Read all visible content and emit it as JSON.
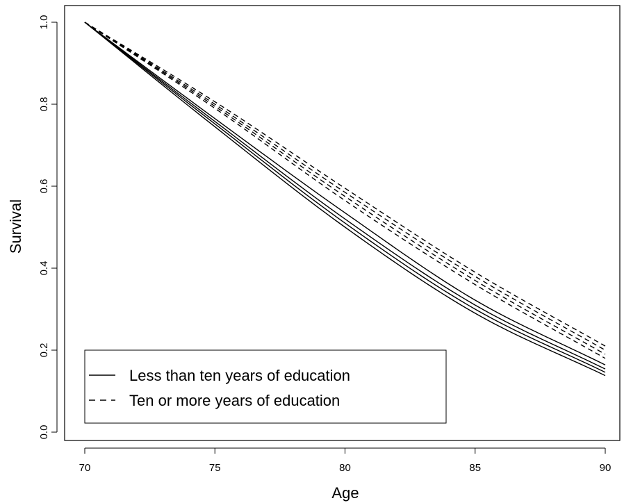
{
  "chart_data": {
    "type": "line",
    "title": "",
    "xlabel": "Age",
    "ylabel": "Survival",
    "xlim": [
      70,
      90
    ],
    "ylim": [
      0,
      1
    ],
    "x_ticks": [
      "70",
      "75",
      "80",
      "85",
      "90"
    ],
    "y_ticks": [
      "0.0",
      "0.2",
      "0.4",
      "0.6",
      "0.8",
      "1.0"
    ],
    "x": [
      70,
      75,
      80,
      85,
      90
    ],
    "legend_position": "bottom-left",
    "legend": [
      {
        "label": "Less than ten years of education",
        "style": "solid"
      },
      {
        "label": "Ten or more years  of education",
        "style": "dashed"
      }
    ],
    "series": [
      {
        "style": "solid",
        "values": [
          1.0,
          0.745,
          0.5,
          0.29,
          0.138
        ]
      },
      {
        "style": "solid",
        "values": [
          1.0,
          0.752,
          0.51,
          0.3,
          0.146
        ]
      },
      {
        "style": "solid",
        "values": [
          1.0,
          0.758,
          0.52,
          0.31,
          0.154
        ]
      },
      {
        "style": "solid",
        "values": [
          1.0,
          0.765,
          0.535,
          0.322,
          0.164
        ]
      },
      {
        "style": "dashed",
        "values": [
          1.0,
          0.79,
          0.565,
          0.36,
          0.18
        ]
      },
      {
        "style": "dashed",
        "values": [
          1.0,
          0.795,
          0.575,
          0.37,
          0.19
        ]
      },
      {
        "style": "dashed",
        "values": [
          1.0,
          0.8,
          0.585,
          0.38,
          0.2
        ]
      },
      {
        "style": "dashed",
        "values": [
          1.0,
          0.806,
          0.595,
          0.39,
          0.21
        ]
      }
    ]
  }
}
